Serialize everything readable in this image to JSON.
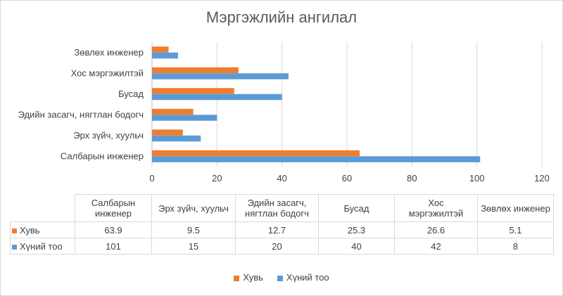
{
  "chart_data": {
    "type": "bar",
    "orientation": "horizontal",
    "title": "Мэргэжлийн ангилал",
    "categories": [
      "Салбарын инженер",
      "Эрх зүйч, хуульч",
      "Эдийн засагч, нягтлан бодогч",
      "Бусад",
      "Хос мэргэжилтэй",
      "Зөвлөх инженер"
    ],
    "table_headers": [
      "Салбарын\nинженер",
      "Эрх зүйч, хуульч",
      "Эдийн засагч,\nнягтлан бодогч",
      "Бусад",
      "Хос\nмэргэжилтэй",
      "Зөвлөх инженер"
    ],
    "series": [
      {
        "name": "Хувь",
        "color": "#ed7d31",
        "values": [
          63.9,
          9.5,
          12.7,
          25.3,
          26.6,
          5.1
        ]
      },
      {
        "name": "Хүний  тоо",
        "color": "#5b9bd5",
        "values": [
          101,
          15,
          20,
          40,
          42,
          8
        ]
      }
    ],
    "xlim": [
      0,
      120
    ],
    "x_ticks": [
      0,
      20,
      40,
      60,
      80,
      100,
      120
    ],
    "grid": true,
    "legend": "bottom",
    "data_table": true
  }
}
